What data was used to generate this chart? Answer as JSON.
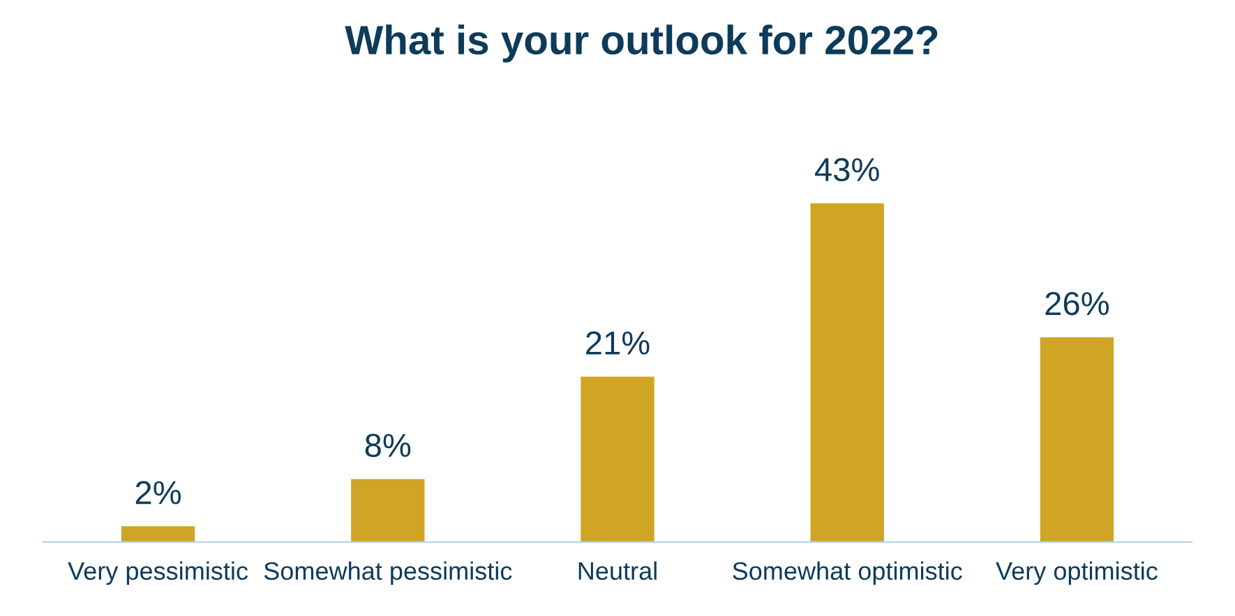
{
  "chart_data": {
    "type": "bar",
    "title": "What is your outlook for 2022?",
    "categories": [
      "Very pessimistic",
      "Somewhat pessimistic",
      "Neutral",
      "Somewhat optimistic",
      "Very optimistic"
    ],
    "values": [
      2,
      8,
      21,
      43,
      26
    ],
    "value_labels": [
      "2%",
      "8%",
      "21%",
      "43%",
      "26%"
    ],
    "color": "#d0a526",
    "grid": false,
    "legend": false
  }
}
